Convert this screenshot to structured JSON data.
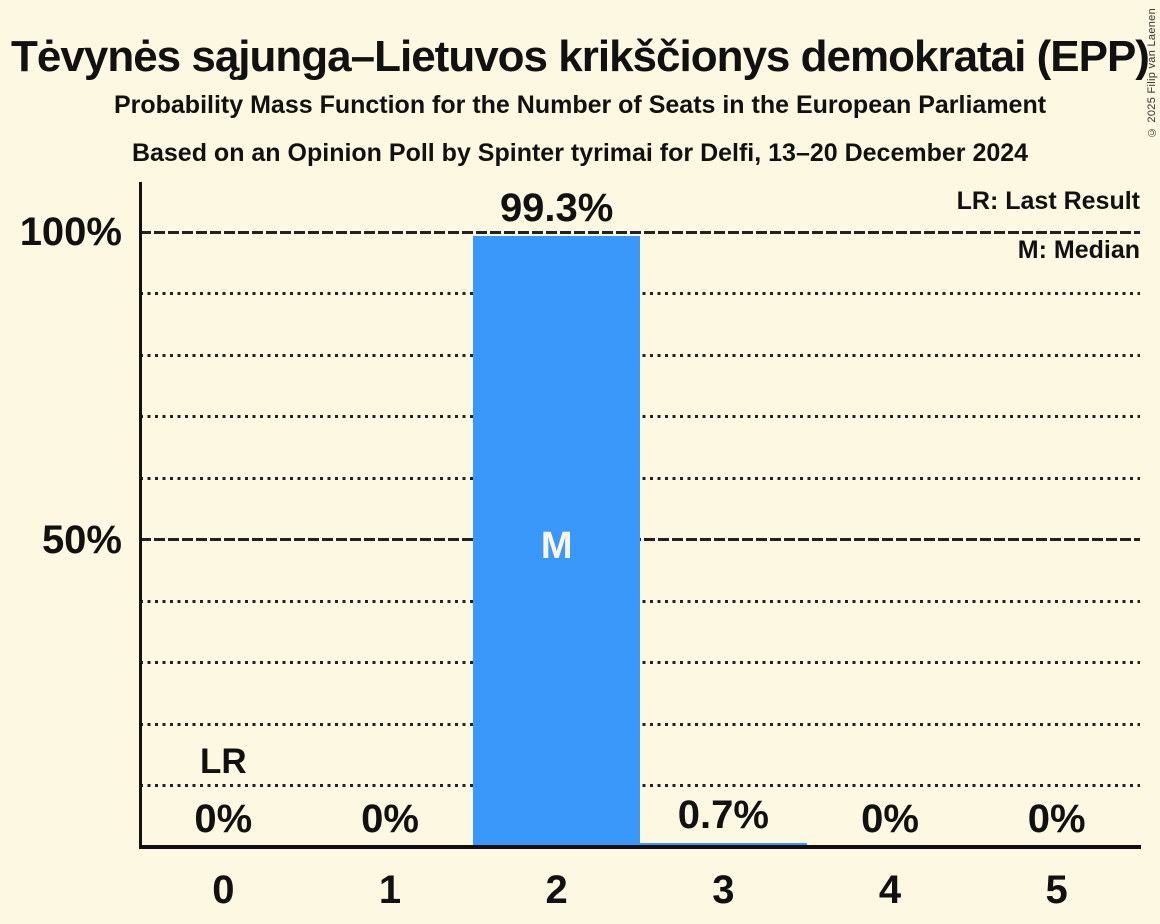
{
  "header": {
    "title": "Tėvynės sąjunga–Lietuvos krikščionys demokratai (EPP)",
    "subtitle_line1": "Probability Mass Function for the Number of Seats in the European Parliament",
    "subtitle_line2": "Based on an Opinion Poll by Spinter tyrimai for Delfi, 13–20 December 2024"
  },
  "legend": {
    "last_result": "LR: Last Result",
    "median": "M: Median"
  },
  "copyright": "© 2025 Filip van Laenen",
  "chart_data": {
    "type": "bar",
    "title": "Probability Mass Function for the Number of Seats in the European Parliament",
    "categories": [
      "0",
      "1",
      "2",
      "3",
      "4",
      "5"
    ],
    "values": [
      0,
      0,
      99.3,
      0.7,
      0,
      0
    ],
    "value_labels": [
      "0%",
      "0%",
      "99.3%",
      "0.7%",
      "0%",
      "0%"
    ],
    "yticks": [
      {
        "percent": 100,
        "label": "100%"
      },
      {
        "percent": 50,
        "label": "50%"
      }
    ],
    "gridlines_dotted_percent": [
      10,
      20,
      30,
      40,
      60,
      70,
      80,
      90
    ],
    "gridlines_dashed_percent": [
      50,
      100
    ],
    "ylim": [
      0,
      108
    ],
    "grid": true,
    "legend_position": "top-right",
    "annotations": {
      "lr_label": "LR",
      "lr_category_index": 0,
      "median_label": "M",
      "median_category_index": 2
    },
    "colors": {
      "background": "#FDF8E2",
      "bar": "#3998FA",
      "text": "#111111",
      "grid": "#222222",
      "median_text": "#FBF6E2"
    }
  }
}
